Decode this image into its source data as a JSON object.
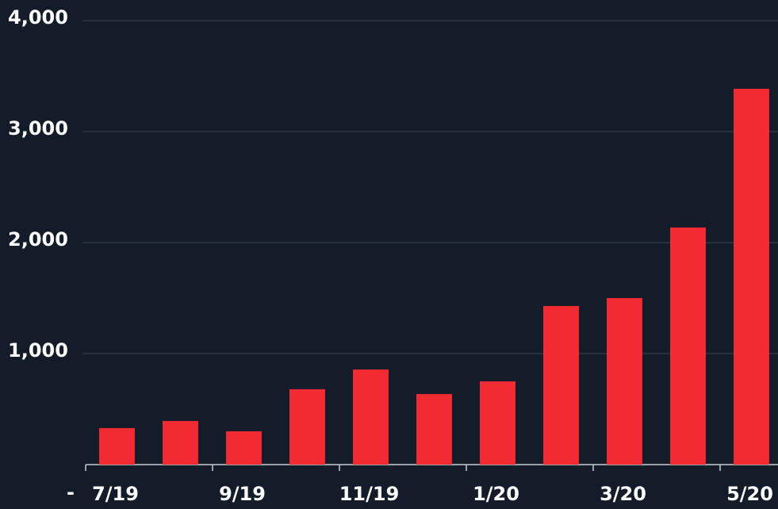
{
  "chart_data": {
    "type": "bar",
    "categories": [
      "7/19",
      null,
      "9/19",
      null,
      "11/19",
      null,
      "1/20",
      null,
      "3/20",
      null,
      "5/20"
    ],
    "values": [
      329,
      393,
      300,
      679,
      857,
      636,
      750,
      1429,
      1500,
      2136,
      3386
    ],
    "color": "#f22a32",
    "ylim": [
      0,
      4000
    ],
    "yticks": [
      {
        "value": 0,
        "label": "-"
      },
      {
        "value": 1000,
        "label": "1,000"
      },
      {
        "value": 2000,
        "label": "2,000"
      },
      {
        "value": 3000,
        "label": "3,000"
      },
      {
        "value": 4000,
        "label": "4,000"
      }
    ],
    "grid": true
  }
}
